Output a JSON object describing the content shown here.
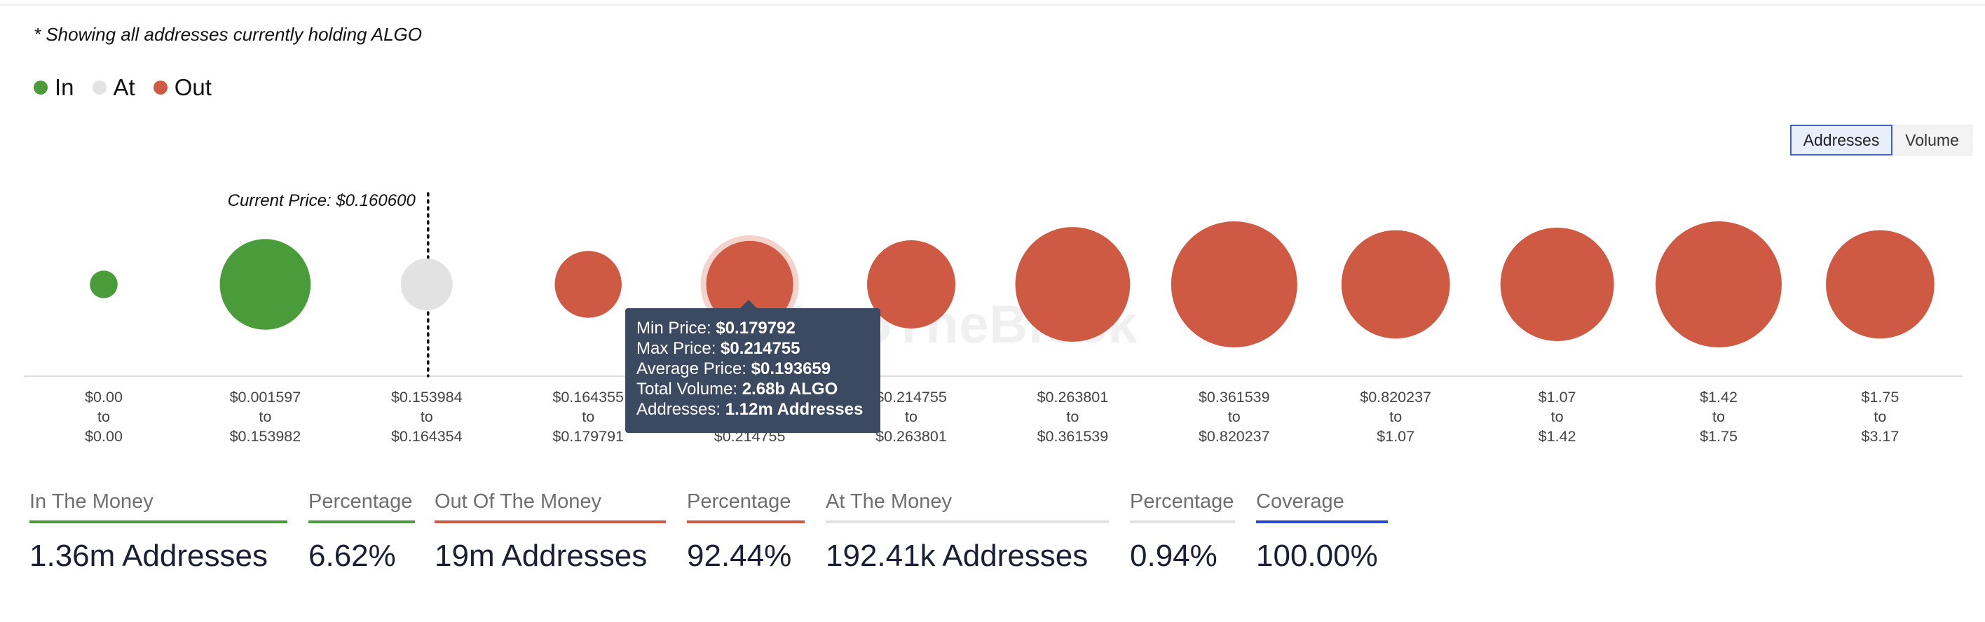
{
  "note": "* Showing all addresses currently holding ALGO",
  "legend": [
    {
      "label": "In",
      "color": "#4a9c3a"
    },
    {
      "label": "At",
      "color": "#e2e2e2"
    },
    {
      "label": "Out",
      "color": "#cf5a43"
    }
  ],
  "toggle": {
    "addresses": "Addresses",
    "volume": "Volume"
  },
  "current_price_label": "Current Price: $0.160600",
  "watermark": "IntoTheBlock",
  "tooltip": {
    "min_label": "Min Price:",
    "min_value": "$0.179792",
    "max_label": "Max Price:",
    "max_value": "$0.214755",
    "avg_label": "Average Price:",
    "avg_value": "$0.193659",
    "vol_label": "Total Volume:",
    "vol_value": "2.68b ALGO",
    "addr_label": "Addresses:",
    "addr_value": "1.12m Addresses"
  },
  "chart_data": {
    "type": "scatter",
    "title": "",
    "categories": [
      {
        "from": "$0.00",
        "to": "$0.00",
        "status": "In",
        "size": 0.22
      },
      {
        "from": "$0.001597",
        "to": "$0.153982",
        "status": "In",
        "size": 0.72
      },
      {
        "from": "$0.153984",
        "to": "$0.164354",
        "status": "At",
        "size": 0.41
      },
      {
        "from": "$0.164355",
        "to": "$0.179791",
        "status": "Out",
        "size": 0.53
      },
      {
        "from": "$0.179792",
        "to": "$0.214755",
        "status": "Out",
        "size": 0.69
      },
      {
        "from": "$0.214755",
        "to": "$0.263801",
        "status": "Out",
        "size": 0.7
      },
      {
        "from": "$0.263801",
        "to": "$0.361539",
        "status": "Out",
        "size": 0.91
      },
      {
        "from": "$0.361539",
        "to": "$0.820237",
        "status": "Out",
        "size": 1.0
      },
      {
        "from": "$0.820237",
        "to": "$1.07",
        "status": "Out",
        "size": 0.86
      },
      {
        "from": "$1.07",
        "to": "$1.42",
        "status": "Out",
        "size": 0.9
      },
      {
        "from": "$1.42",
        "to": "$1.75",
        "status": "Out",
        "size": 1.0
      },
      {
        "from": "$1.75",
        "to": "$3.17",
        "status": "Out",
        "size": 0.86
      }
    ],
    "highlighted_index": 4,
    "current_price_between": [
      2
    ]
  },
  "stats": [
    {
      "label": "In The Money",
      "value": "1.36m Addresses",
      "color": "#4a9c3a"
    },
    {
      "label": "Percentage",
      "value": "6.62%",
      "color": "#4a9c3a"
    },
    {
      "label": "Out Of The Money",
      "value": "19m Addresses",
      "color": "#cf5a43"
    },
    {
      "label": "Percentage",
      "value": "92.44%",
      "color": "#cf5a43"
    },
    {
      "label": "At The Money",
      "value": "192.41k Addresses",
      "color": "#e2e2e2"
    },
    {
      "label": "Percentage",
      "value": "0.94%",
      "color": "#e2e2e2"
    },
    {
      "label": "Coverage",
      "value": "100.00%",
      "color": "#2745d8"
    }
  ]
}
